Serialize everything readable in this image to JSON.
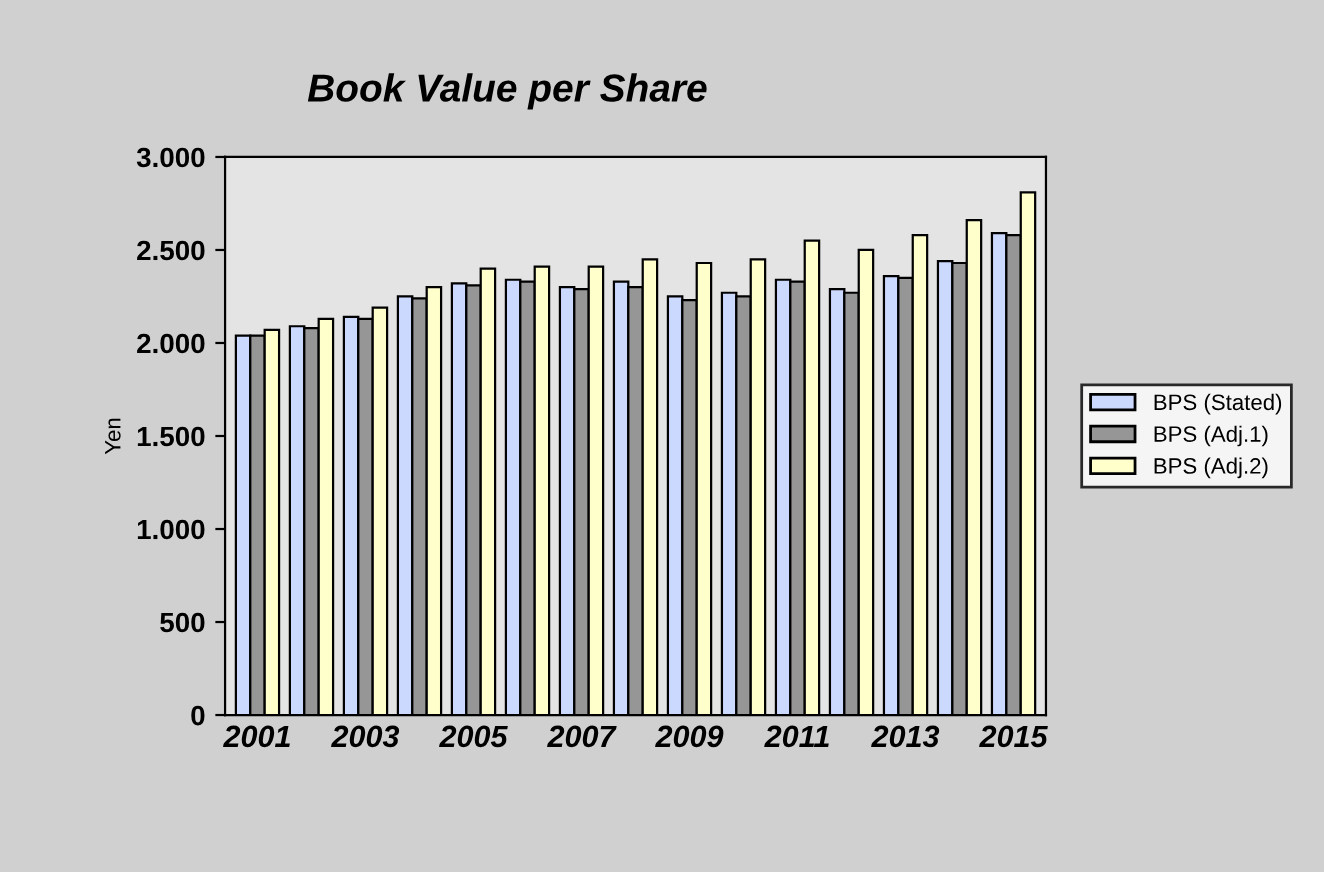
{
  "chart_data": {
    "type": "bar",
    "title": "Book Value per Share",
    "ylabel": "Yen",
    "categories": [
      "2001",
      null,
      "2003",
      null,
      "2005",
      null,
      "2007",
      null,
      "2009",
      null,
      "2011",
      null,
      "2013",
      null,
      "2015"
    ],
    "series": [
      {
        "name": "BPS (Stated)",
        "color": "#ccd9ff",
        "values": [
          2040,
          2090,
          2140,
          2250,
          2320,
          2340,
          2300,
          2330,
          2250,
          2270,
          2340,
          2290,
          2360,
          2440,
          2590
        ]
      },
      {
        "name": "BPS (Adj.1)",
        "color": "#969696",
        "values": [
          2040,
          2080,
          2130,
          2240,
          2310,
          2330,
          2290,
          2300,
          2230,
          2250,
          2330,
          2270,
          2350,
          2430,
          2580
        ]
      },
      {
        "name": "BPS (Adj.2)",
        "color": "#ffffcc",
        "values": [
          2070,
          2130,
          2190,
          2300,
          2400,
          2410,
          2410,
          2450,
          2430,
          2450,
          2550,
          2500,
          2580,
          2660,
          2810
        ]
      }
    ],
    "ylim": [
      0,
      3000
    ],
    "yticks": [
      {
        "value": 0,
        "label": "0"
      },
      {
        "value": 500,
        "label": "500"
      },
      {
        "value": 1000,
        "label": "1.000"
      },
      {
        "value": 1500,
        "label": "1.500"
      },
      {
        "value": 2000,
        "label": "2.000"
      },
      {
        "value": 2500,
        "label": "2.500"
      },
      {
        "value": 3000,
        "label": "3.000"
      }
    ],
    "grid": false,
    "legend": "right"
  }
}
